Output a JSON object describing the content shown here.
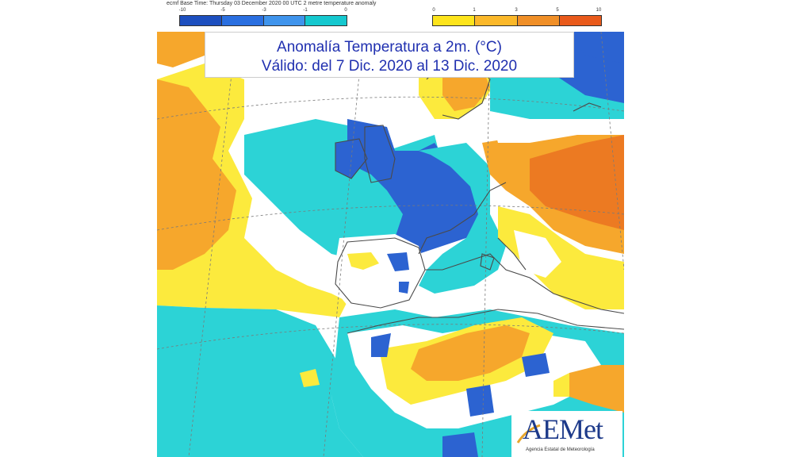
{
  "header": {
    "text": "ecmf  Base Time: Thursday 03 December 2020 00 UTC 2 metre temperature anomaly"
  },
  "legend": {
    "cold_ticks": [
      "-10",
      "-5",
      "-3",
      "-1",
      "0"
    ],
    "warm_ticks": [
      "0",
      "1",
      "3",
      "5",
      "10"
    ],
    "cold_colors": [
      "#1d4fbf",
      "#2a6fe0",
      "#3f94ec",
      "#15c8cf"
    ],
    "warm_colors": [
      "#fde41c",
      "#fbb829",
      "#f08f27",
      "#e95a1b"
    ]
  },
  "title": {
    "line1": "Anomalía Temperatura a 2m. (°C)",
    "line2": "Válido: del 7 Dic. 2020 al 13 Dic. 2020"
  },
  "logo": {
    "name": "AEMet",
    "subtitle": "Agencia Estatal de Meteorología",
    "color": "#1d3a8a"
  },
  "map": {
    "colors": {
      "cyan": "#2cd3d6",
      "blue": "#2c63d1",
      "yellow": "#fcea3d",
      "orange": "#f6a72c",
      "dark_orange": "#ec7a22",
      "white": "#ffffff",
      "coast": "#4a4a4a"
    }
  }
}
